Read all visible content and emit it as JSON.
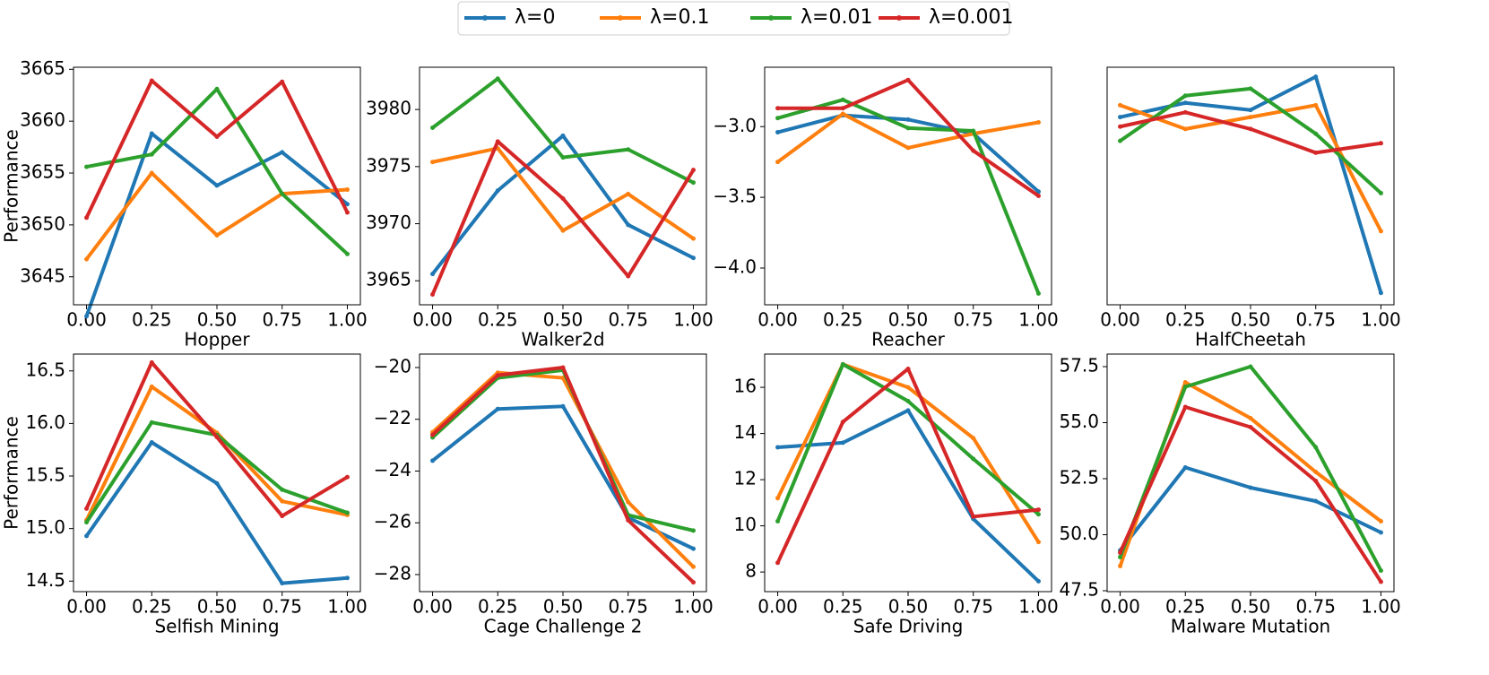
{
  "chart_data": [
    {
      "type": "line",
      "x_label": "Hopper",
      "y_label": "Performance",
      "x": [
        0,
        0.25,
        0.5,
        0.75,
        1.0
      ],
      "xlim": [
        -0.05,
        1.05
      ],
      "xticks": [
        {
          "value": 0,
          "label": "0.00"
        },
        {
          "value": 0.25,
          "label": "0.25"
        },
        {
          "value": 0.5,
          "label": "0.50"
        },
        {
          "value": 0.75,
          "label": "0.75"
        },
        {
          "value": 1.0,
          "label": "1.00"
        }
      ],
      "ylim": [
        3642.3,
        3665.2
      ],
      "yticks": [
        3645,
        3650,
        3655,
        3660,
        3665
      ],
      "series": [
        {
          "name": "λ=0",
          "color": "#1f77b4",
          "values": [
            3641.2,
            3658.8,
            3653.8,
            3657.0,
            3652.0
          ]
        },
        {
          "name": "λ=0.1",
          "color": "#ff7f0e",
          "values": [
            3646.7,
            3655.0,
            3649.0,
            3653.0,
            3653.4
          ]
        },
        {
          "name": "λ=0.01",
          "color": "#2ca02c",
          "values": [
            3655.6,
            3656.8,
            3663.1,
            3653.0,
            3647.2
          ]
        },
        {
          "name": "λ=0.001",
          "color": "#d62728",
          "values": [
            3650.7,
            3663.9,
            3658.5,
            3663.8,
            3651.2
          ]
        }
      ]
    },
    {
      "type": "line",
      "x_label": "Walker2d",
      "x": [
        0,
        0.25,
        0.5,
        0.75,
        1.0
      ],
      "xlim": [
        -0.05,
        1.05
      ],
      "xticks": [
        {
          "value": 0,
          "label": "0.00"
        },
        {
          "value": 0.25,
          "label": "0.25"
        },
        {
          "value": 0.5,
          "label": "0.50"
        },
        {
          "value": 0.75,
          "label": "0.75"
        },
        {
          "value": 1.0,
          "label": "1.00"
        }
      ],
      "ylim": [
        3962.9,
        3983.7
      ],
      "yticks": [
        3965,
        3970,
        3975,
        3980
      ],
      "series": [
        {
          "name": "λ=0",
          "color": "#1f77b4",
          "values": [
            3965.6,
            3972.9,
            3977.7,
            3969.9,
            3967.0
          ]
        },
        {
          "name": "λ=0.1",
          "color": "#ff7f0e",
          "values": [
            3975.4,
            3976.6,
            3969.4,
            3972.6,
            3968.7
          ]
        },
        {
          "name": "λ=0.01",
          "color": "#2ca02c",
          "values": [
            3978.4,
            3982.7,
            3975.8,
            3976.5,
            3973.6
          ]
        },
        {
          "name": "λ=0.001",
          "color": "#d62728",
          "values": [
            3963.8,
            3977.2,
            3972.2,
            3965.4,
            3974.7
          ]
        }
      ]
    },
    {
      "type": "line",
      "x_label": "Reacher",
      "x": [
        0,
        0.25,
        0.5,
        0.75,
        1.0
      ],
      "xlim": [
        -0.05,
        1.05
      ],
      "xticks": [
        {
          "value": 0,
          "label": "0.00"
        },
        {
          "value": 0.25,
          "label": "0.25"
        },
        {
          "value": 0.5,
          "label": "0.50"
        },
        {
          "value": 0.75,
          "label": "0.75"
        },
        {
          "value": 1.0,
          "label": "1.00"
        }
      ],
      "ylim": [
        -4.26,
        -2.58
      ],
      "yticks": [
        {
          "value": -3.0,
          "label": "−3.0"
        },
        {
          "value": -3.5,
          "label": "−3.5"
        },
        {
          "value": -4.0,
          "label": "−4.0"
        }
      ],
      "series": [
        {
          "name": "λ=0",
          "color": "#1f77b4",
          "values": [
            -3.04,
            -2.92,
            -2.95,
            -3.05,
            -3.46
          ]
        },
        {
          "name": "λ=0.1",
          "color": "#ff7f0e",
          "values": [
            -3.25,
            -2.91,
            -3.15,
            -3.05,
            -2.97
          ]
        },
        {
          "name": "λ=0.01",
          "color": "#2ca02c",
          "values": [
            -2.94,
            -2.81,
            -3.01,
            -3.03,
            -4.18
          ]
        },
        {
          "name": "λ=0.001",
          "color": "#d62728",
          "values": [
            -2.87,
            -2.87,
            -2.67,
            -3.17,
            -3.49
          ]
        }
      ]
    },
    {
      "type": "line",
      "x_label": "HalfCheetah",
      "x": [
        0,
        0.25,
        0.5,
        0.75,
        1.0
      ],
      "xlim": [
        -0.05,
        1.05
      ],
      "xticks": [
        {
          "value": 0,
          "label": "0.00"
        },
        {
          "value": 0.25,
          "label": "0.25"
        },
        {
          "value": 0.5,
          "label": "0.50"
        },
        {
          "value": 0.75,
          "label": "0.75"
        },
        {
          "value": 1.0,
          "label": "1.00"
        }
      ],
      "ylim": [
        0,
        1
      ],
      "yticks": [],
      "series": [
        {
          "name": "λ=0",
          "color": "#1f77b4",
          "values": [
            0.79,
            0.85,
            0.82,
            0.96,
            0.05
          ]
        },
        {
          "name": "λ=0.1",
          "color": "#ff7f0e",
          "values": [
            0.84,
            0.74,
            0.79,
            0.84,
            0.31
          ]
        },
        {
          "name": "λ=0.01",
          "color": "#2ca02c",
          "values": [
            0.69,
            0.88,
            0.91,
            0.72,
            0.47
          ]
        },
        {
          "name": "λ=0.001",
          "color": "#d62728",
          "values": [
            0.75,
            0.81,
            0.74,
            0.64,
            0.68
          ]
        }
      ]
    },
    {
      "type": "line",
      "x_label": "Selfish Mining",
      "y_label": "Performance",
      "x": [
        0,
        0.25,
        0.5,
        0.75,
        1.0
      ],
      "xlim": [
        -0.05,
        1.05
      ],
      "xticks": [
        {
          "value": 0,
          "label": "0.00"
        },
        {
          "value": 0.25,
          "label": "0.25"
        },
        {
          "value": 0.5,
          "label": "0.50"
        },
        {
          "value": 0.75,
          "label": "0.75"
        },
        {
          "value": 1.0,
          "label": "1.00"
        }
      ],
      "ylim": [
        14.4,
        16.66
      ],
      "yticks": [
        14.5,
        {
          "value": 15.0,
          "label": "15.0"
        },
        15.5,
        {
          "value": 16.0,
          "label": "16.0"
        },
        16.5
      ],
      "series": [
        {
          "name": "λ=0",
          "color": "#1f77b4",
          "values": [
            14.93,
            15.82,
            15.43,
            14.48,
            14.53
          ]
        },
        {
          "name": "λ=0.1",
          "color": "#ff7f0e",
          "values": [
            15.08,
            16.35,
            15.91,
            15.26,
            15.13
          ]
        },
        {
          "name": "λ=0.01",
          "color": "#2ca02c",
          "values": [
            15.06,
            16.01,
            15.89,
            15.37,
            15.15
          ]
        },
        {
          "name": "λ=0.001",
          "color": "#d62728",
          "values": [
            15.19,
            16.58,
            15.87,
            15.12,
            15.49
          ]
        }
      ]
    },
    {
      "type": "line",
      "x_label": "Cage Challenge 2",
      "x": [
        0,
        0.25,
        0.5,
        0.75,
        1.0
      ],
      "xlim": [
        -0.05,
        1.05
      ],
      "xticks": [
        {
          "value": 0,
          "label": "0.00"
        },
        {
          "value": 0.25,
          "label": "0.25"
        },
        {
          "value": 0.5,
          "label": "0.50"
        },
        {
          "value": 0.75,
          "label": "0.75"
        },
        {
          "value": 1.0,
          "label": "1.00"
        }
      ],
      "ylim": [
        -28.66,
        -19.48
      ],
      "yticks": [
        {
          "value": -20,
          "label": "−20"
        },
        {
          "value": -22,
          "label": "−22"
        },
        {
          "value": -24,
          "label": "−24"
        },
        {
          "value": -26,
          "label": "−26"
        },
        {
          "value": -28,
          "label": "−28"
        }
      ],
      "series": [
        {
          "name": "λ=0",
          "color": "#1f77b4",
          "values": [
            -23.6,
            -21.6,
            -21.5,
            -25.8,
            -27.0
          ]
        },
        {
          "name": "λ=0.1",
          "color": "#ff7f0e",
          "values": [
            -22.5,
            -20.2,
            -20.4,
            -25.2,
            -27.7
          ]
        },
        {
          "name": "λ=0.01",
          "color": "#2ca02c",
          "values": [
            -22.7,
            -20.4,
            -20.1,
            -25.7,
            -26.3
          ]
        },
        {
          "name": "λ=0.001",
          "color": "#d62728",
          "values": [
            -22.6,
            -20.3,
            -20.0,
            -25.9,
            -28.3
          ]
        }
      ]
    },
    {
      "type": "line",
      "x_label": "Safe Driving",
      "x": [
        0,
        0.25,
        0.5,
        0.75,
        1.0
      ],
      "xlim": [
        -0.05,
        1.05
      ],
      "xticks": [
        {
          "value": 0,
          "label": "0.00"
        },
        {
          "value": 0.25,
          "label": "0.25"
        },
        {
          "value": 0.5,
          "label": "0.50"
        },
        {
          "value": 0.75,
          "label": "0.75"
        },
        {
          "value": 1.0,
          "label": "1.00"
        }
      ],
      "ylim": [
        7.15,
        17.44
      ],
      "yticks": [
        8,
        10,
        12,
        14,
        16
      ],
      "series": [
        {
          "name": "λ=0",
          "color": "#1f77b4",
          "values": [
            13.4,
            13.6,
            15.0,
            10.3,
            7.6
          ]
        },
        {
          "name": "λ=0.1",
          "color": "#ff7f0e",
          "values": [
            11.2,
            17.0,
            16.0,
            13.8,
            9.3
          ]
        },
        {
          "name": "λ=0.01",
          "color": "#2ca02c",
          "values": [
            10.2,
            17.0,
            15.4,
            12.9,
            10.5
          ]
        },
        {
          "name": "λ=0.001",
          "color": "#d62728",
          "values": [
            8.4,
            14.5,
            16.8,
            10.4,
            10.7
          ]
        }
      ]
    },
    {
      "type": "line",
      "x_label": "Malware Mutation",
      "x": [
        0,
        0.25,
        0.5,
        0.75,
        1.0
      ],
      "xlim": [
        -0.05,
        1.05
      ],
      "xticks": [
        {
          "value": 0,
          "label": "0.00"
        },
        {
          "value": 0.25,
          "label": "0.25"
        },
        {
          "value": 0.5,
          "label": "0.50"
        },
        {
          "value": 0.75,
          "label": "0.75"
        },
        {
          "value": 1.0,
          "label": "1.00"
        }
      ],
      "ylim": [
        47.46,
        58.06
      ],
      "yticks": [
        47.5,
        {
          "value": 50.0,
          "label": "50.0"
        },
        52.5,
        {
          "value": 55.0,
          "label": "55.0"
        },
        57.5
      ],
      "series": [
        {
          "name": "λ=0",
          "color": "#1f77b4",
          "values": [
            49.3,
            53.0,
            52.1,
            51.5,
            50.1
          ]
        },
        {
          "name": "λ=0.1",
          "color": "#ff7f0e",
          "values": [
            48.6,
            56.8,
            55.2,
            52.8,
            50.6
          ]
        },
        {
          "name": "λ=0.01",
          "color": "#2ca02c",
          "values": [
            49.0,
            56.6,
            57.5,
            53.9,
            48.4
          ]
        },
        {
          "name": "λ=0.001",
          "color": "#d62728",
          "values": [
            49.2,
            55.7,
            54.8,
            52.4,
            47.9
          ]
        }
      ]
    }
  ]
}
